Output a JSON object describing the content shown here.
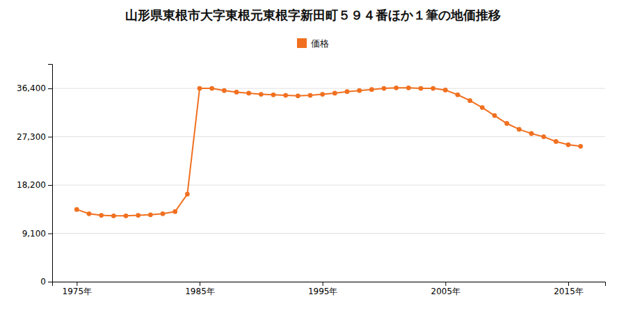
{
  "chart_data": {
    "type": "line",
    "title": "山形県東根市大字東根元東根字新田町５９４番ほか１筆の地価推移",
    "x": [
      1975,
      1976,
      1977,
      1978,
      1979,
      1980,
      1981,
      1982,
      1983,
      1984,
      1985,
      1986,
      1987,
      1988,
      1989,
      1990,
      1991,
      1992,
      1993,
      1994,
      1995,
      1996,
      1997,
      1998,
      1999,
      2000,
      2001,
      2002,
      2003,
      2004,
      2005,
      2006,
      2007,
      2008,
      2009,
      2010,
      2011,
      2012,
      2013,
      2014,
      2015,
      2016
    ],
    "series": [
      {
        "name": "価格",
        "color": "#f07020",
        "marker": "circle",
        "values": [
          13600,
          12800,
          12500,
          12400,
          12400,
          12500,
          12600,
          12800,
          13200,
          16500,
          36400,
          36400,
          36000,
          35700,
          35500,
          35300,
          35200,
          35100,
          35000,
          35100,
          35300,
          35500,
          35800,
          36000,
          36200,
          36400,
          36500,
          36500,
          36400,
          36400,
          36100,
          35200,
          34100,
          32800,
          31300,
          29800,
          28700,
          27900,
          27300,
          26400,
          25800,
          25500
        ]
      }
    ],
    "xlim": [
      1973,
      2018
    ],
    "xticks": [
      {
        "value": 1975,
        "label": "1975年"
      },
      {
        "value": 1985,
        "label": "1985年"
      },
      {
        "value": 1995,
        "label": "1995年"
      },
      {
        "value": 2005,
        "label": "2005年"
      },
      {
        "value": 2015,
        "label": "2015年"
      }
    ],
    "ylim": [
      0,
      41000
    ],
    "yticks": [
      0,
      {
        "value": 9100,
        "label": "9,100"
      },
      {
        "value": 18200,
        "label": "18,200"
      },
      {
        "value": 27300,
        "label": "27,300"
      },
      {
        "value": 36400,
        "label": "36,400"
      }
    ],
    "grid": true,
    "legend": "top"
  }
}
